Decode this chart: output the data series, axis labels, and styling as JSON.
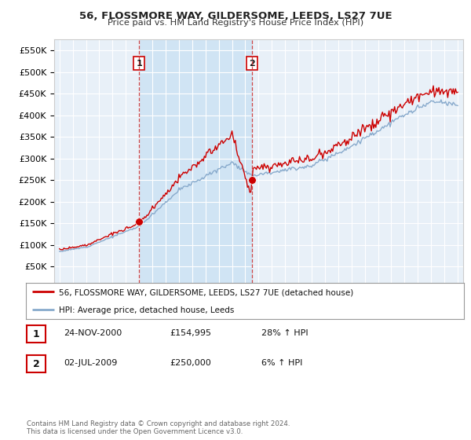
{
  "title": "56, FLOSSMORE WAY, GILDERSOME, LEEDS, LS27 7UE",
  "subtitle": "Price paid vs. HM Land Registry's House Price Index (HPI)",
  "legend_line1": "56, FLOSSMORE WAY, GILDERSOME, LEEDS, LS27 7UE (detached house)",
  "legend_line2": "HPI: Average price, detached house, Leeds",
  "annotation1_label": "1",
  "annotation1_date": "24-NOV-2000",
  "annotation1_price": "£154,995",
  "annotation1_hpi": "28% ↑ HPI",
  "annotation2_label": "2",
  "annotation2_date": "02-JUL-2009",
  "annotation2_price": "£250,000",
  "annotation2_hpi": "6% ↑ HPI",
  "copyright": "Contains HM Land Registry data © Crown copyright and database right 2024.\nThis data is licensed under the Open Government Licence v3.0.",
  "red_color": "#cc0000",
  "blue_color": "#88aacc",
  "dashed_color": "#cc3333",
  "background_color": "#ffffff",
  "plot_bg_color": "#e8f0f8",
  "shade_color": "#d0e4f4",
  "grid_color": "#ffffff",
  "ylim": [
    0,
    575000
  ],
  "yticks": [
    0,
    50000,
    100000,
    150000,
    200000,
    250000,
    300000,
    350000,
    400000,
    450000,
    500000,
    550000
  ],
  "marker1_x": 2001.0,
  "marker1_y": 154995,
  "marker2_x": 2009.5,
  "marker2_y": 250000,
  "vline1_x": 2001.0,
  "vline2_x": 2009.5,
  "xmin": 1995,
  "xmax": 2025
}
